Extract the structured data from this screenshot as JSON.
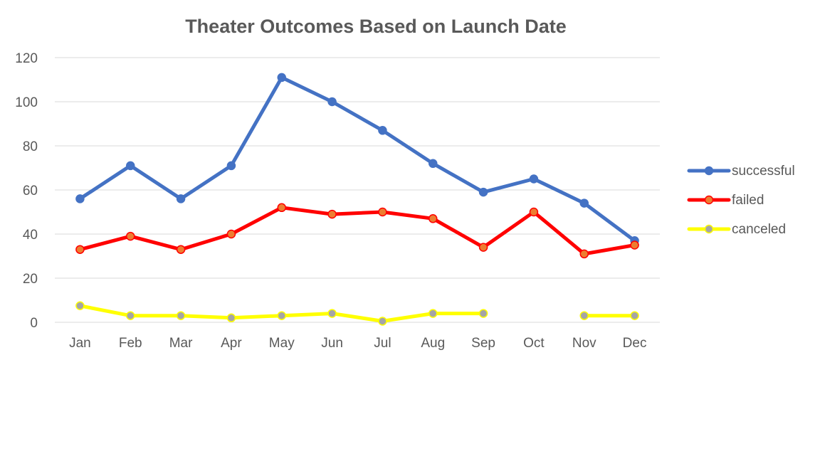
{
  "chart_data": {
    "type": "line",
    "title": "Theater Outcomes Based on Launch Date",
    "xlabel": "",
    "ylabel": "",
    "ylim": [
      0,
      120
    ],
    "yticks": [
      0,
      20,
      40,
      60,
      80,
      100,
      120
    ],
    "grid": true,
    "legend_position": "right",
    "categories": [
      "Jan",
      "Feb",
      "Mar",
      "Apr",
      "May",
      "Jun",
      "Jul",
      "Aug",
      "Sep",
      "Oct",
      "Nov",
      "Dec"
    ],
    "series": [
      {
        "name": "successful",
        "color": "#4472c4",
        "marker_color": "#4472c4",
        "values": [
          56,
          71,
          56,
          71,
          111,
          100,
          87,
          72,
          59,
          65,
          54,
          37
        ]
      },
      {
        "name": "failed",
        "color": "#ff0000",
        "marker_color": "#ed7d31",
        "values": [
          33,
          39,
          33,
          40,
          52,
          49,
          50,
          47,
          34,
          50,
          31,
          35
        ]
      },
      {
        "name": "canceled",
        "color": "#ffff00",
        "marker_color": "#a5a5a5",
        "values": [
          7.5,
          3,
          3,
          2,
          3,
          4,
          0.5,
          4,
          4,
          null,
          3,
          3
        ]
      }
    ]
  }
}
